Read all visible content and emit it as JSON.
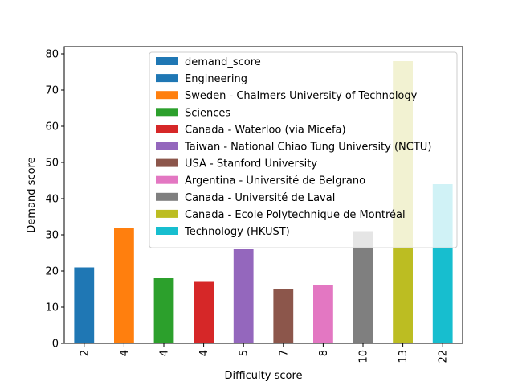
{
  "chart_data": {
    "type": "bar",
    "xlabel": "Difficulty score",
    "ylabel": "Demand score",
    "categories": [
      "2",
      "4",
      "4",
      "4",
      "5",
      "7",
      "8",
      "10",
      "13",
      "22"
    ],
    "values": [
      21,
      32,
      18,
      17,
      26,
      15,
      16,
      31,
      78,
      44
    ],
    "bar_colors": [
      "#1f77b4",
      "#ff7f0e",
      "#2ca02c",
      "#d62728",
      "#9467bd",
      "#8c564b",
      "#e377c2",
      "#7f7f7f",
      "#bcbd22",
      "#17becf"
    ],
    "ylim": [
      0,
      82
    ],
    "yticks": [
      0,
      10,
      20,
      30,
      40,
      50,
      60,
      70,
      80
    ],
    "x_tick_rotation": 90,
    "grid": false,
    "legend": {
      "placement": "upper-center",
      "entries": [
        {
          "label": "demand_score",
          "color": "#1f77b4"
        },
        {
          "label": "Engineering",
          "color": "#1f77b4"
        },
        {
          "label": "Sweden - Chalmers University of Technology",
          "color": "#ff7f0e"
        },
        {
          "label": "Sciences",
          "color": "#2ca02c"
        },
        {
          "label": "Canada - Waterloo (via Micefa)",
          "color": "#d62728"
        },
        {
          "label": "Taiwan - National Chiao Tung University (NCTU)",
          "color": "#9467bd"
        },
        {
          "label": "USA - Stanford University",
          "color": "#8c564b"
        },
        {
          "label": "Argentina - Université de Belgrano",
          "color": "#e377c2"
        },
        {
          "label": "Canada - Université de Laval",
          "color": "#7f7f7f"
        },
        {
          "label": "Canada - Ecole Polytechnique de Montréal",
          "color": "#bcbd22"
        },
        {
          "label": "Technology (HKUST)",
          "color": "#17becf"
        }
      ]
    }
  }
}
